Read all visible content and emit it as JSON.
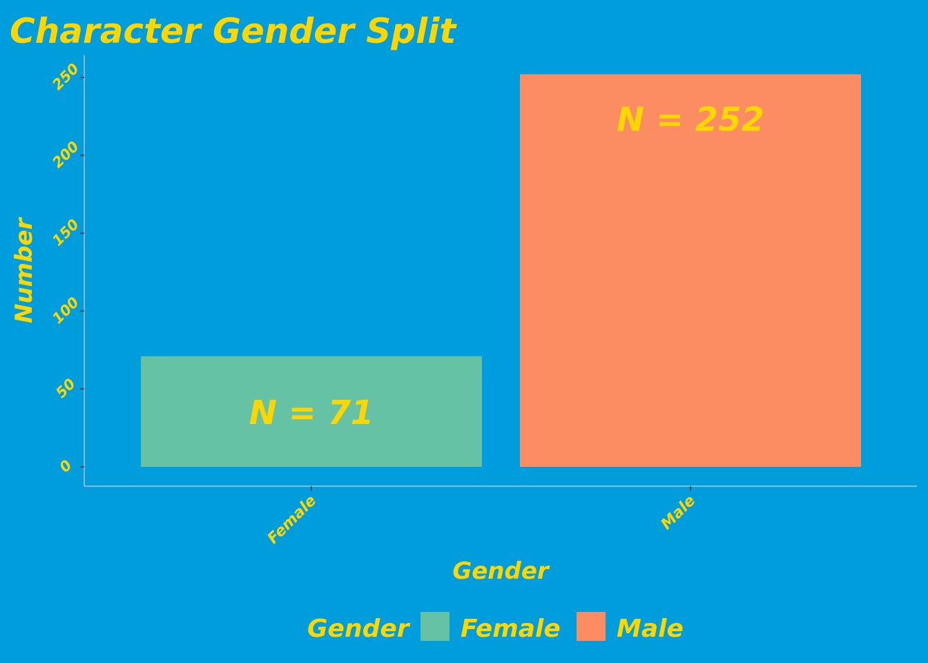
{
  "chart_data": {
    "type": "bar",
    "title": "Character Gender Split",
    "xlabel": "Gender",
    "ylabel": "Number",
    "categories": [
      "Female",
      "Male"
    ],
    "values": [
      71,
      252
    ],
    "data_labels": [
      "N = 71",
      "N = 252"
    ],
    "yticks": [
      0,
      50,
      100,
      150,
      200,
      250
    ],
    "ylim": [
      0,
      265
    ],
    "colors": [
      "#66c2a5",
      "#fc8d62"
    ],
    "background": "#009ddc",
    "text_color": "#ffd700",
    "grid": false,
    "legend": {
      "title": "Gender",
      "position": "bottom",
      "items": [
        {
          "label": "Female",
          "color": "#66c2a5"
        },
        {
          "label": "Male",
          "color": "#fc8d62"
        }
      ]
    }
  }
}
